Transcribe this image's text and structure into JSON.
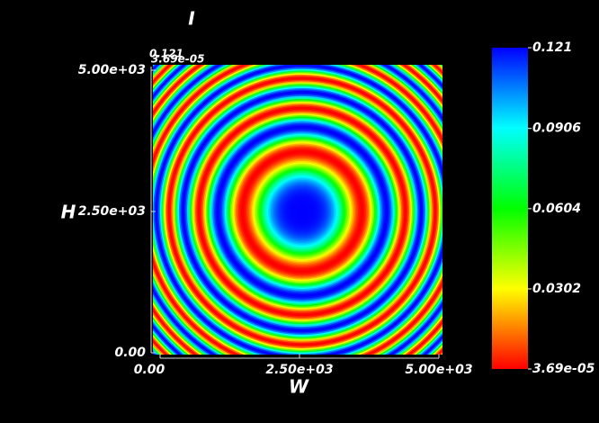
{
  "chart_data": {
    "type": "heatmap",
    "title": "I",
    "xlabel": "W",
    "ylabel": "H",
    "xlim": [
      0,
      5000
    ],
    "xticks": [
      {
        "value": 0,
        "label": "0.00"
      },
      {
        "value": 2500,
        "label": "2.50e+03"
      },
      {
        "value": 5000,
        "label": "5.00e+03"
      }
    ],
    "ylim": [
      0,
      5000
    ],
    "yticks": [
      {
        "value": 0,
        "label": "0.00"
      },
      {
        "value": 2500,
        "label": "2.50e+03"
      },
      {
        "value": 5000,
        "label": "5.00e+03"
      }
    ],
    "z_labels": [
      "0.121",
      "3.69e-05"
    ],
    "colorbar": {
      "clim": [
        3.69e-05,
        0.121
      ],
      "ticks": [
        {
          "value": 3.69e-05,
          "label": "3.69e-05"
        },
        0.0302,
        0.0604,
        0.0906,
        0.121
      ],
      "colors": [
        "#ff0000",
        "#ffff00",
        "#00ff00",
        "#00ffff",
        "#0000ff"
      ]
    }
  }
}
